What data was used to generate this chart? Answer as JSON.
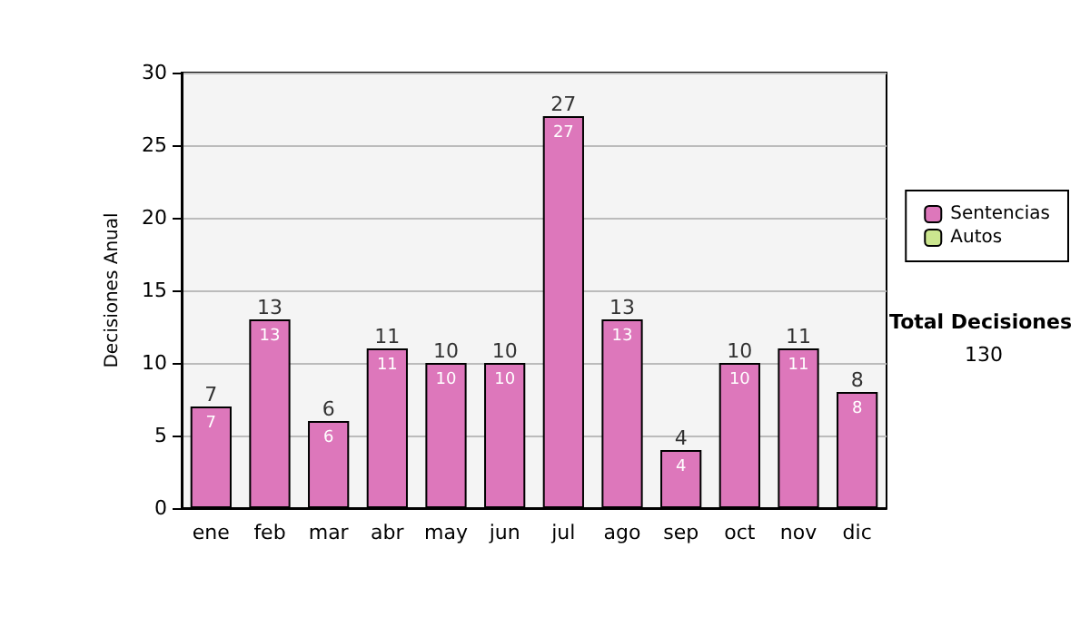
{
  "chart_data": {
    "type": "bar",
    "ylabel": "Decisiones Anual",
    "categories": [
      "ene",
      "feb",
      "mar",
      "abr",
      "may",
      "jun",
      "jul",
      "ago",
      "sep",
      "oct",
      "nov",
      "dic"
    ],
    "series": [
      {
        "name": "Sentencias",
        "color": "#dd77bb",
        "values": [
          7,
          13,
          6,
          11,
          10,
          10,
          27,
          13,
          4,
          10,
          11,
          8
        ],
        "value_labels": [
          "7",
          "13",
          "6",
          "11",
          "10",
          "10",
          "27",
          "13",
          "4",
          "10",
          "11",
          "8"
        ]
      },
      {
        "name": "Autos",
        "color": "#cce68f",
        "values": [
          null,
          null,
          null,
          null,
          null,
          null,
          null,
          null,
          null,
          null,
          null,
          null
        ]
      }
    ],
    "stacked": true,
    "totals": [
      "7",
      "13",
      "6",
      "11",
      "10",
      "10",
      "27",
      "13",
      "4",
      "10",
      "11",
      "8"
    ],
    "ylim": [
      0,
      30
    ],
    "yticks": [
      0,
      5,
      10,
      15,
      20,
      25,
      30
    ],
    "grid": "y",
    "legend": "right",
    "annotations": [
      "Total Decisiones",
      "130"
    ]
  }
}
